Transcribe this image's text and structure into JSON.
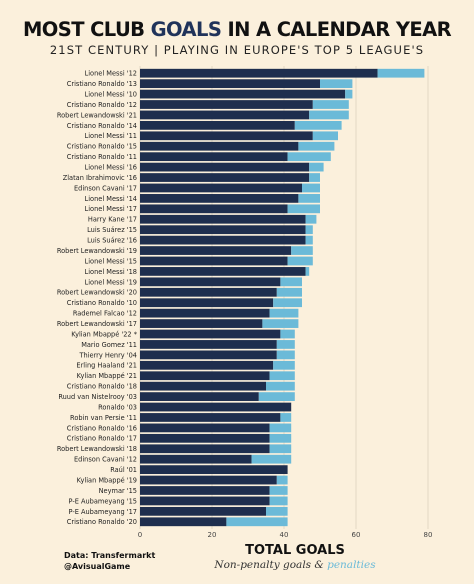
{
  "header": {
    "title_pre": "MOST CLUB ",
    "title_highlight": "GOALS",
    "title_post": " IN A CALENDAR YEAR",
    "subtitle": "21ST CENTURY  |  PLAYING IN EUROPE'S TOP 5 LEAGUE'S"
  },
  "footer": {
    "source_line1": "Data: Transfermarkt",
    "source_line2": "@AvisualGame",
    "legend_title": "TOTAL GOALS",
    "legend_np": "Non-penalty goals",
    "legend_amp": " & ",
    "legend_pen": "penalties"
  },
  "colors": {
    "non_penalty": "#1e2e4e",
    "penalty": "#6bbad8",
    "background": "#fbf0dc",
    "grid": "#ded3bf"
  },
  "chart_data": {
    "type": "bar",
    "orientation": "horizontal",
    "stacked": true,
    "title": "MOST CLUB GOALS IN A CALENDAR YEAR",
    "subtitle": "21ST CENTURY | PLAYING IN EUROPE'S TOP 5 LEAGUE'S",
    "xlabel": "TOTAL GOALS",
    "xlim": [
      0,
      80
    ],
    "xticks": [
      0,
      20,
      40,
      60,
      80
    ],
    "grid": true,
    "categories": [
      "Lionel Messi '12",
      "Cristiano Ronaldo '13",
      "Lionel Messi '10",
      "Cristiano Ronaldo '12",
      "Robert Lewandowski '21",
      "Cristiano Ronaldo '14",
      "Lionel Messi '11",
      "Cristiano Ronaldo '15",
      "Cristiano Ronaldo '11",
      "Lionel Messi '16",
      "Zlatan Ibrahimovic '16",
      "Edinson Cavani '17",
      "Lionel Messi '14",
      "Lionel Messi '17",
      "Harry Kane '17",
      "Luis Suárez '15",
      "Luis Suárez '16",
      "Robert Lewandowski '19",
      "Lionel Messi '15",
      "Lionel Messi '18",
      "Lionel Messi '19",
      "Robert Lewandowski '20",
      "Cristiano Ronaldo '10",
      "Rademel Falcao '12",
      "Robert Lewandowski '17",
      "Kylian Mbappé '22 *",
      "Mario Gomez '11",
      "Thierry Henry '04",
      "Erling Haaland '21",
      "Kylian Mbappé '21",
      "Cristiano Ronaldo '18",
      "Ruud van Nistelrooy '03",
      "Ronaldo '03",
      "Robin van Persie '11",
      "Cristiano Ronaldo '16",
      "Cristiano Ronaldo '17",
      "Robert Lewandowski '18",
      "Edinson Cavani '12",
      "Raúl '01",
      "Kylian Mbappé '19",
      "Neymar '15",
      "P-E Aubameyang '15",
      "P-E Aubameyang '17",
      "Cristiano Ronaldo '20"
    ],
    "series": [
      {
        "name": "Non-penalty goals",
        "values": [
          66,
          50,
          57,
          48,
          47,
          43,
          48,
          44,
          41,
          47,
          47,
          45,
          44,
          41,
          46,
          46,
          46,
          42,
          41,
          46,
          39,
          38,
          37,
          36,
          34,
          39,
          38,
          38,
          37,
          36,
          35,
          33,
          42,
          39,
          36,
          36,
          36,
          31,
          41,
          38,
          36,
          36,
          35,
          24
        ]
      },
      {
        "name": "penalties",
        "values": [
          13,
          9,
          2,
          10,
          11,
          13,
          7,
          10,
          12,
          4,
          3,
          5,
          6,
          9,
          3,
          2,
          2,
          6,
          7,
          1,
          6,
          7,
          8,
          8,
          10,
          4,
          5,
          5,
          6,
          7,
          8,
          10,
          0,
          3,
          6,
          6,
          6,
          11,
          0,
          3,
          5,
          5,
          6,
          17
        ]
      }
    ]
  }
}
